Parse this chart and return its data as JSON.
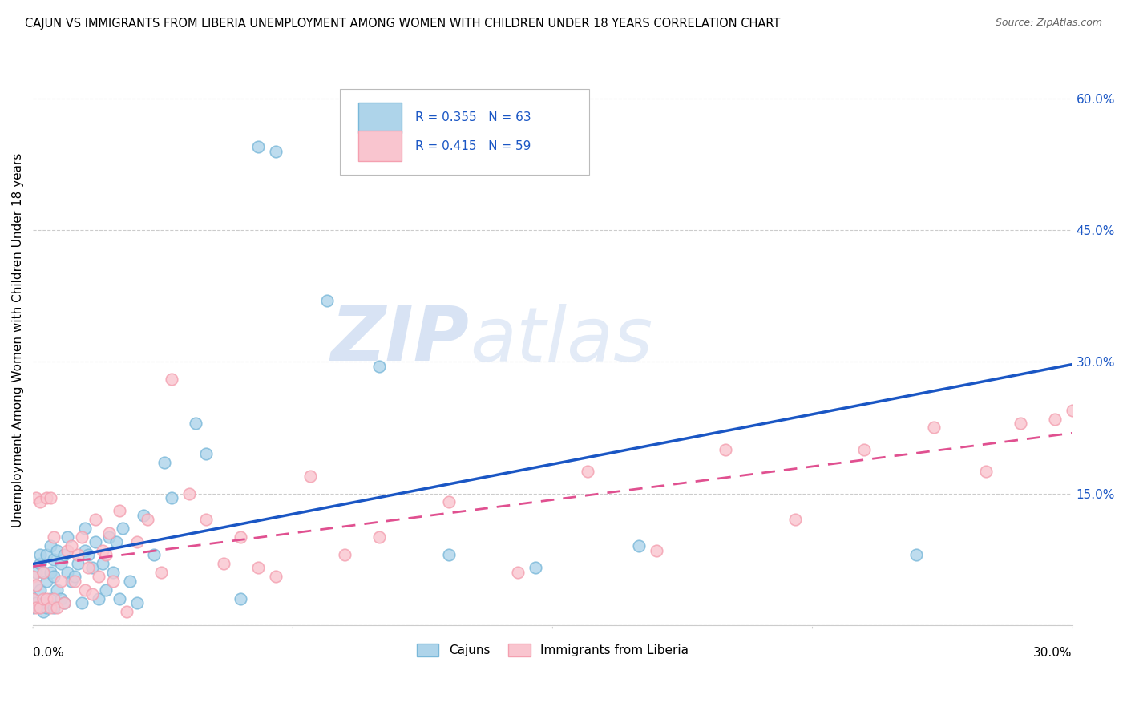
{
  "title": "CAJUN VS IMMIGRANTS FROM LIBERIA UNEMPLOYMENT AMONG WOMEN WITH CHILDREN UNDER 18 YEARS CORRELATION CHART",
  "source": "Source: ZipAtlas.com",
  "ylabel": "Unemployment Among Women with Children Under 18 years",
  "x_min": 0.0,
  "x_max": 0.3,
  "y_min": 0.0,
  "y_max": 0.65,
  "y_ticks": [
    0.0,
    0.15,
    0.3,
    0.45,
    0.6
  ],
  "y_tick_labels": [
    "",
    "15.0%",
    "30.0%",
    "45.0%",
    "60.0%"
  ],
  "cajun_color": "#7ab8d9",
  "cajun_face_color": "#aed4ea",
  "liberia_color": "#f4a0b0",
  "liberia_face_color": "#f9c5cf",
  "regression_cajun_color": "#1a56c4",
  "regression_liberia_color": "#e05090",
  "legend_R_cajun": "0.355",
  "legend_N_cajun": "63",
  "legend_R_liberia": "0.415",
  "legend_N_liberia": "59",
  "legend_label_cajun": "Cajuns",
  "legend_label_liberia": "Immigrants from Liberia",
  "watermark_zip": "ZIP",
  "watermark_atlas": "atlas",
  "background_color": "#ffffff",
  "grid_color": "#cccccc",
  "cajun_x": [
    0.0,
    0.0,
    0.001,
    0.001,
    0.001,
    0.002,
    0.002,
    0.002,
    0.002,
    0.003,
    0.003,
    0.003,
    0.004,
    0.004,
    0.004,
    0.005,
    0.005,
    0.005,
    0.006,
    0.006,
    0.006,
    0.007,
    0.007,
    0.008,
    0.008,
    0.009,
    0.009,
    0.01,
    0.01,
    0.011,
    0.012,
    0.013,
    0.014,
    0.015,
    0.015,
    0.016,
    0.017,
    0.018,
    0.019,
    0.02,
    0.021,
    0.022,
    0.023,
    0.024,
    0.025,
    0.026,
    0.028,
    0.03,
    0.032,
    0.035,
    0.038,
    0.04,
    0.047,
    0.05,
    0.06,
    0.065,
    0.07,
    0.085,
    0.1,
    0.12,
    0.145,
    0.175,
    0.255
  ],
  "cajun_y": [
    0.02,
    0.03,
    0.025,
    0.045,
    0.06,
    0.02,
    0.04,
    0.07,
    0.08,
    0.015,
    0.025,
    0.06,
    0.02,
    0.05,
    0.08,
    0.03,
    0.06,
    0.09,
    0.02,
    0.055,
    0.075,
    0.04,
    0.085,
    0.03,
    0.07,
    0.025,
    0.08,
    0.06,
    0.1,
    0.05,
    0.055,
    0.07,
    0.025,
    0.085,
    0.11,
    0.08,
    0.065,
    0.095,
    0.03,
    0.07,
    0.04,
    0.1,
    0.06,
    0.095,
    0.03,
    0.11,
    0.05,
    0.025,
    0.125,
    0.08,
    0.185,
    0.145,
    0.23,
    0.195,
    0.03,
    0.545,
    0.54,
    0.37,
    0.295,
    0.08,
    0.065,
    0.09,
    0.08
  ],
  "liberia_x": [
    0.0,
    0.0,
    0.001,
    0.001,
    0.001,
    0.002,
    0.002,
    0.003,
    0.003,
    0.004,
    0.004,
    0.005,
    0.005,
    0.006,
    0.006,
    0.007,
    0.008,
    0.009,
    0.01,
    0.011,
    0.012,
    0.013,
    0.014,
    0.015,
    0.016,
    0.017,
    0.018,
    0.019,
    0.02,
    0.021,
    0.022,
    0.023,
    0.025,
    0.027,
    0.03,
    0.033,
    0.037,
    0.04,
    0.045,
    0.05,
    0.055,
    0.06,
    0.065,
    0.07,
    0.08,
    0.09,
    0.1,
    0.12,
    0.14,
    0.16,
    0.18,
    0.2,
    0.22,
    0.24,
    0.26,
    0.275,
    0.285,
    0.295,
    0.3
  ],
  "liberia_y": [
    0.03,
    0.055,
    0.02,
    0.045,
    0.145,
    0.02,
    0.14,
    0.03,
    0.06,
    0.03,
    0.145,
    0.02,
    0.145,
    0.03,
    0.1,
    0.02,
    0.05,
    0.025,
    0.085,
    0.09,
    0.05,
    0.08,
    0.1,
    0.04,
    0.065,
    0.035,
    0.12,
    0.055,
    0.085,
    0.08,
    0.105,
    0.05,
    0.13,
    0.015,
    0.095,
    0.12,
    0.06,
    0.28,
    0.15,
    0.12,
    0.07,
    0.1,
    0.065,
    0.055,
    0.17,
    0.08,
    0.1,
    0.14,
    0.06,
    0.175,
    0.085,
    0.2,
    0.12,
    0.2,
    0.225,
    0.175,
    0.23,
    0.235,
    0.245
  ]
}
